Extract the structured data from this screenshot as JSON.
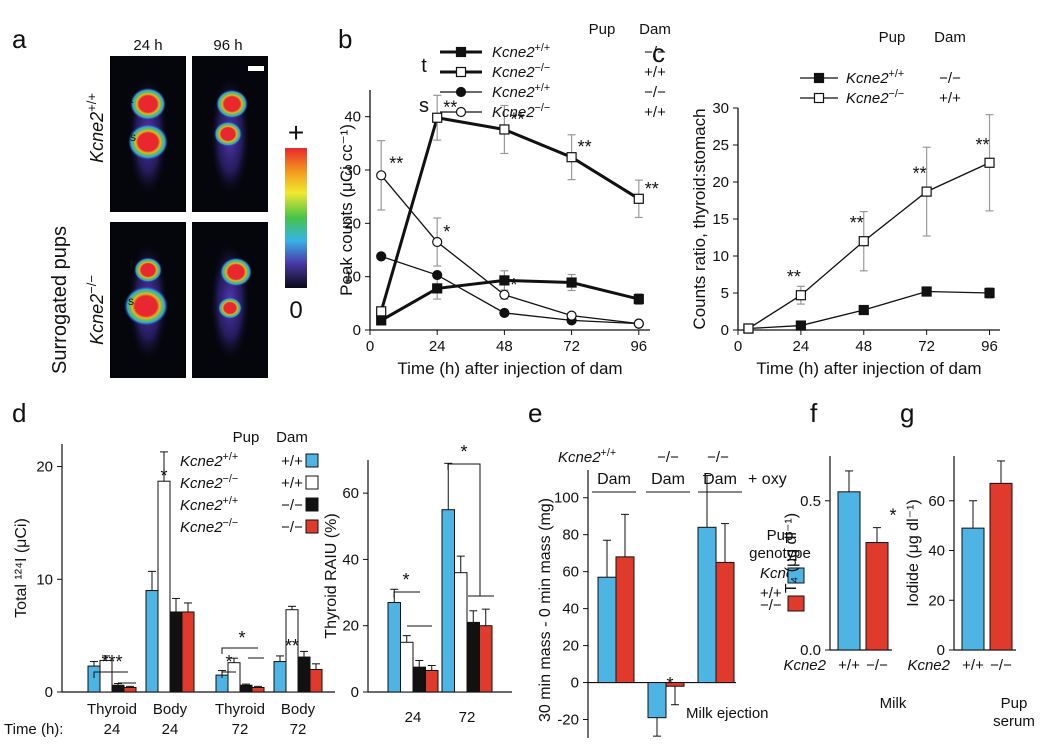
{
  "panel_letters": [
    "a",
    "b",
    "c",
    "d",
    "e",
    "f",
    "g"
  ],
  "panel_a": {
    "col_labels": [
      "24 h",
      "96 h"
    ],
    "side_label": "Surrogated pups",
    "gene": "Kcne2",
    "row_sup": [
      "+/+",
      "−/−"
    ],
    "organ_labels": [
      "t",
      "s"
    ],
    "colorbar_top": "+",
    "colorbar_bottom": "0"
  },
  "chart_data": [
    {
      "panel": "b",
      "type": "line",
      "xlabel": "Time (h) after injection of dam",
      "ylabel": "Peak counts (μCi cc⁻¹)",
      "xlim": [
        0,
        100
      ],
      "ylim": [
        0,
        45
      ],
      "xticks": [
        0,
        24,
        48,
        72,
        96
      ],
      "yticks": [
        0,
        10,
        20,
        30,
        40
      ],
      "legend_header": [
        "Pup",
        "Dam"
      ],
      "legend_groups": [
        "t",
        "s"
      ],
      "series": [
        {
          "group": "t",
          "gene": "Kcne2",
          "sup": "+/+",
          "pup": "+/+",
          "dam": "−/−",
          "marker": "square",
          "fill": "#111111",
          "thick": true,
          "x": [
            4,
            24,
            48,
            72,
            96
          ],
          "y": [
            1.8,
            7.8,
            9.3,
            8.9,
            5.8
          ],
          "err": [
            0.4,
            2.0,
            1.8,
            1.5,
            1.0
          ],
          "sig": [
            "",
            "",
            "",
            "",
            ""
          ]
        },
        {
          "group": "t",
          "gene": "Kcne2",
          "sup": "−/−",
          "pup": "−/−",
          "dam": "+/+",
          "marker": "square",
          "fill": "#ffffff",
          "thick": true,
          "x": [
            4,
            24,
            48,
            72,
            96
          ],
          "y": [
            3.5,
            39.8,
            37.6,
            32.4,
            24.6
          ],
          "err": [
            0.8,
            4.2,
            4.5,
            4.2,
            3.5
          ],
          "sig": [
            "",
            "**",
            "**",
            "**",
            "**"
          ]
        },
        {
          "group": "s",
          "gene": "Kcne2",
          "sup": "+/+",
          "pup": "+/+",
          "dam": "−/−",
          "marker": "circle",
          "fill": "#111111",
          "thick": false,
          "x": [
            4,
            24,
            48,
            72,
            96
          ],
          "y": [
            13.8,
            10.3,
            3.2,
            1.8,
            1.2
          ],
          "err": [
            0,
            0,
            0,
            0,
            0
          ],
          "sig": [
            "",
            "",
            "",
            "",
            ""
          ]
        },
        {
          "group": "s",
          "gene": "Kcne2",
          "sup": "−/−",
          "pup": "−/−",
          "dam": "+/+",
          "marker": "circle",
          "fill": "#ffffff",
          "thick": false,
          "x": [
            4,
            24,
            48,
            72,
            96
          ],
          "y": [
            29,
            16.5,
            6.6,
            2.7,
            1.2
          ],
          "err": [
            6.5,
            4.5,
            0.8,
            0.5,
            0.3
          ],
          "sig": [
            "**",
            "*",
            "*",
            "",
            ""
          ]
        }
      ]
    },
    {
      "panel": "c",
      "type": "line",
      "xlabel": "Time (h) after injection of dam",
      "ylabel": "Counts ratio, thyroid:stomach",
      "xlim": [
        0,
        100
      ],
      "ylim": [
        0,
        30
      ],
      "xticks": [
        0,
        24,
        48,
        72,
        96
      ],
      "yticks": [
        0,
        5,
        10,
        15,
        20,
        25,
        30
      ],
      "legend_header": [
        "Pup",
        "Dam"
      ],
      "series": [
        {
          "gene": "Kcne2",
          "sup": "+/+",
          "pup": "+/+",
          "dam": "−/−",
          "marker": "square",
          "fill": "#111111",
          "x": [
            4,
            24,
            48,
            72,
            96
          ],
          "y": [
            0.2,
            0.6,
            2.7,
            5.2,
            5.0
          ],
          "err": [
            0,
            0.3,
            0.4,
            0.6,
            0.7
          ],
          "sig": [
            "",
            "",
            "",
            "",
            ""
          ]
        },
        {
          "gene": "Kcne2",
          "sup": "−/−",
          "pup": "−/−",
          "dam": "+/+",
          "marker": "square",
          "fill": "#ffffff",
          "x": [
            4,
            24,
            48,
            72,
            96
          ],
          "y": [
            0.2,
            4.7,
            12.0,
            18.7,
            22.6
          ],
          "err": [
            0,
            1.2,
            4.0,
            6.0,
            6.5
          ],
          "sig": [
            "",
            "**",
            "**",
            "**",
            "**"
          ]
        }
      ]
    },
    {
      "panel": "d",
      "type": "bar",
      "ylabel": "Total ¹²⁴I (μCi)",
      "ylim": [
        0,
        22
      ],
      "yticks": [
        0,
        10,
        20
      ],
      "time_row_label": "Time (h):",
      "categories": [
        "Thyroid",
        "Body",
        "Thyroid",
        "Body"
      ],
      "times": [
        "24",
        "24",
        "72",
        "72"
      ],
      "legend_header": [
        "Pup",
        "Dam"
      ],
      "series": [
        {
          "gene": "Kcne2",
          "sup": "+/+",
          "pup": "+/+",
          "dam": "+/+",
          "color": "#4eb4e4",
          "values": [
            2.3,
            9.0,
            1.5,
            2.7
          ],
          "err": [
            0.4,
            1.7,
            0.4,
            0.5
          ]
        },
        {
          "gene": "Kcne2",
          "sup": "−/−",
          "pup": "−/−",
          "dam": "+/+",
          "color": "#ffffff",
          "values": [
            2.8,
            18.7,
            2.6,
            7.3
          ],
          "err": [
            0.4,
            2.6,
            0.4,
            0.3
          ]
        },
        {
          "gene": "Kcne2",
          "sup": "+/+",
          "pup": "+/+",
          "dam": "−/−",
          "color": "#111111",
          "values": [
            0.6,
            7.1,
            0.6,
            3.1
          ],
          "err": [
            0.15,
            1.2,
            0.1,
            0.5
          ]
        },
        {
          "gene": "Kcne2",
          "sup": "−/−",
          "pup": "−/−",
          "dam": "−/−",
          "color": "#e03a2d",
          "values": [
            0.4,
            7.1,
            0.4,
            2.0
          ],
          "err": [
            0.1,
            0.8,
            0.1,
            0.5
          ]
        }
      ],
      "sig_labels": [
        "***",
        "*",
        "*",
        "*",
        "**"
      ]
    },
    {
      "panel": "d2",
      "type": "bar",
      "ylabel": "Thyroid RAIU (%)",
      "ylim": [
        0,
        70
      ],
      "yticks": [
        0,
        20,
        40,
        60
      ],
      "categories": [
        "24",
        "72"
      ],
      "series": [
        {
          "color": "#4eb4e4",
          "values": [
            27,
            55
          ],
          "err": [
            4,
            14
          ]
        },
        {
          "color": "#ffffff",
          "values": [
            15,
            36
          ],
          "err": [
            2,
            5
          ]
        },
        {
          "color": "#111111",
          "values": [
            7.5,
            21
          ],
          "err": [
            2,
            3.5
          ]
        },
        {
          "color": "#e03a2d",
          "values": [
            6.5,
            20
          ],
          "err": [
            1.5,
            5
          ]
        }
      ],
      "sig_labels": [
        "*",
        "*"
      ]
    },
    {
      "panel": "e",
      "type": "bar",
      "ylabel": "30 min mass - 0 min mass (mg)",
      "ylim": [
        -30,
        115
      ],
      "yticks": [
        -20,
        0,
        20,
        40,
        60,
        80,
        100
      ],
      "header_gene": "Kcne2",
      "header_genotypes": [
        "+/+",
        "−/−",
        "−/−"
      ],
      "groups": [
        "Dam",
        "Dam",
        "Dam"
      ],
      "group_suffix": [
        "",
        "",
        "+ oxy"
      ],
      "legend_title": "Pup genotype",
      "legend_gene": "Kcne2",
      "legend_labels": [
        "+/+",
        "−/−"
      ],
      "annotation": "Milk ejection",
      "series": [
        {
          "name": "+/+",
          "color": "#4eb4e4",
          "values": [
            57,
            -19,
            84
          ],
          "err": [
            20,
            10,
            28
          ]
        },
        {
          "name": "−/−",
          "color": "#e03a2d",
          "values": [
            68,
            -2,
            65
          ],
          "err": [
            23,
            10,
            21
          ]
        }
      ],
      "sig_labels": [
        "*"
      ]
    },
    {
      "panel": "f",
      "type": "bar",
      "ylabel": "T₄ (μg dl⁻¹)",
      "ylim": [
        0,
        0.65
      ],
      "yticks": [
        0.0,
        0.5
      ],
      "categories": [
        "+/+",
        "−/−"
      ],
      "gene": "Kcne2",
      "xlabel": "Milk",
      "colors": [
        "#4eb4e4",
        "#e03a2d"
      ],
      "values": [
        0.53,
        0.36
      ],
      "err": [
        0.07,
        0.05
      ],
      "sig_labels": [
        "*"
      ]
    },
    {
      "panel": "g",
      "type": "bar",
      "ylabel": "Iodide (μg dl⁻¹)",
      "ylim": [
        0,
        78
      ],
      "yticks": [
        0,
        20,
        40,
        60
      ],
      "categories": [
        "+/+",
        "−/−"
      ],
      "gene": "Kcne2",
      "xlabel": "Pup serum",
      "colors": [
        "#4eb4e4",
        "#e03a2d"
      ],
      "values": [
        49,
        67
      ],
      "err": [
        11,
        9
      ]
    }
  ]
}
